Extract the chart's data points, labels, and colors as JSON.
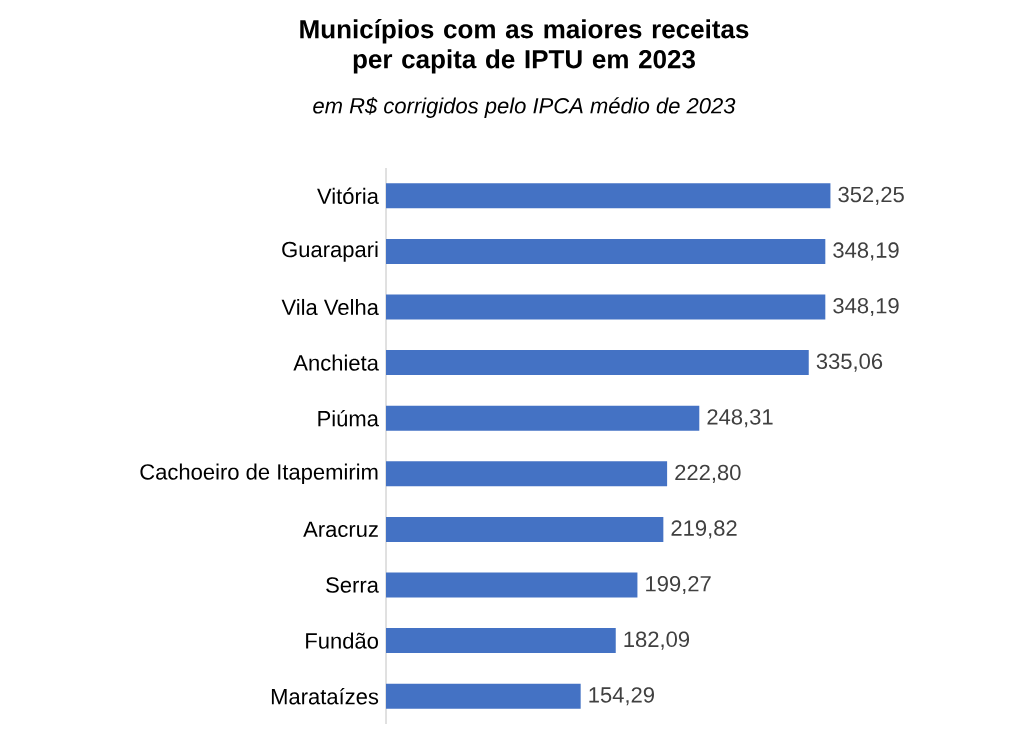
{
  "chart_data": {
    "type": "bar",
    "orientation": "horizontal",
    "title": "Municípios com as maiores receitas per capita de IPTU em 2023",
    "subtitle": "em R$ corrigidos pelo IPCA médio de 2023",
    "categories": [
      "Vitória",
      "Guarapari",
      "Vila Velha",
      "Anchieta",
      "Piúma",
      "Cachoeiro de Itapemirim",
      "Aracruz",
      "Serra",
      "Fundão",
      "Marataízes"
    ],
    "values": [
      352.25,
      348.19,
      348.19,
      335.06,
      248.31,
      222.8,
      219.82,
      199.27,
      182.09,
      154.29
    ],
    "value_labels": [
      "352,25",
      "348,19",
      "348,19",
      "335,06",
      "248,31",
      "222,80",
      "219,82",
      "199,27",
      "182,09",
      "154,29"
    ],
    "color": "#4472c4"
  }
}
